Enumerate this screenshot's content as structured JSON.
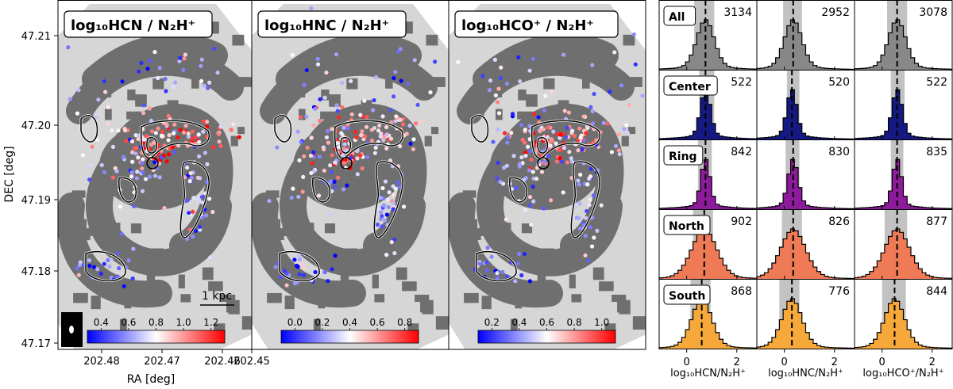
{
  "chart_data": [
    {
      "type": "map",
      "panels": [
        {
          "title": "log₁₀HCN / N₂H⁺",
          "colorbar_ticks": [
            "0.4",
            "0.6",
            "0.8",
            "1.0",
            "1.2"
          ],
          "clim": [
            0.3,
            1.3
          ]
        },
        {
          "title": "log₁₀HNC / N₂H⁺",
          "colorbar_ticks": [
            "0.0",
            "0.2",
            "0.4",
            "0.6",
            "0.8"
          ],
          "clim": [
            -0.1,
            0.9
          ]
        },
        {
          "title": "log₁₀HCO⁺ / N₂H⁺",
          "colorbar_ticks": [
            "0.2",
            "0.4",
            "0.6",
            "0.8",
            "1.0"
          ],
          "clim": [
            0.1,
            1.1
          ]
        }
      ],
      "xlabel": "RA [deg]",
      "ylabel": "DEC [deg]",
      "x_ticks": [
        "202.48",
        "202.47",
        "202.46",
        "202.45"
      ],
      "y_ticks": [
        "47.21",
        "47.20",
        "47.19",
        "47.18",
        "47.17"
      ],
      "scale_bar": "1 kpc",
      "colormap": "bwr"
    },
    {
      "type": "histogram-grid",
      "regions": [
        "All",
        "Center",
        "Ring",
        "North",
        "South"
      ],
      "region_colors": [
        "#888888",
        "#151a82",
        "#8e1b9c",
        "#ee7a56",
        "#f7a83a"
      ],
      "columns": [
        "log₁₀HCN/N₂H⁺",
        "log₁₀HNC/N₂H⁺",
        "log₁₀HCO⁺/N₂H⁺"
      ],
      "counts": [
        [
          "3134",
          "2952",
          "3078"
        ],
        [
          "522",
          "520",
          "522"
        ],
        [
          "842",
          "830",
          "835"
        ],
        [
          "902",
          "826",
          "877"
        ],
        [
          "868",
          "776",
          "844"
        ]
      ],
      "x_ticks": [
        "0",
        "2"
      ],
      "xlim": [
        -1.1,
        2.8
      ],
      "medians": [
        [
          0.75,
          0.35,
          0.6
        ],
        [
          0.75,
          0.3,
          0.6
        ],
        [
          0.75,
          0.35,
          0.6
        ],
        [
          0.7,
          0.35,
          0.6
        ],
        [
          0.6,
          0.3,
          0.5
        ]
      ],
      "shade_ranges": [
        [
          [
            0.3,
            1.1
          ],
          [
            -0.05,
            0.7
          ],
          [
            0.2,
            1.0
          ]
        ],
        [
          [
            0.5,
            1.1
          ],
          [
            0.1,
            0.6
          ],
          [
            0.35,
            0.9
          ]
        ],
        [
          [
            0.45,
            1.0
          ],
          [
            0.05,
            0.6
          ],
          [
            0.35,
            0.85
          ]
        ],
        [
          [
            0.25,
            1.05
          ],
          [
            -0.1,
            0.7
          ],
          [
            0.1,
            1.0
          ]
        ],
        [
          [
            0.15,
            0.95
          ],
          [
            -0.2,
            0.6
          ],
          [
            0.0,
            0.95
          ]
        ]
      ],
      "widths": [
        [
          0.35,
          0.35,
          0.35
        ],
        [
          0.2,
          0.2,
          0.2
        ],
        [
          0.18,
          0.2,
          0.18
        ],
        [
          0.5,
          0.5,
          0.5
        ],
        [
          0.4,
          0.4,
          0.4
        ]
      ]
    }
  ]
}
